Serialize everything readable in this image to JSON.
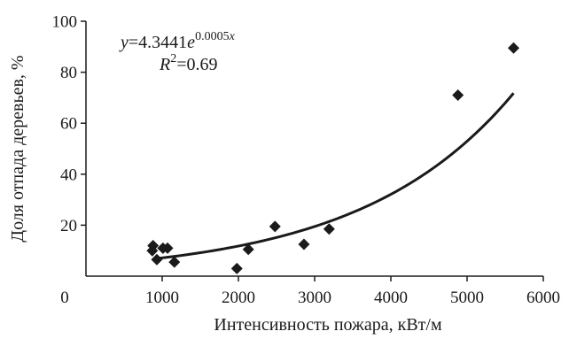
{
  "chart_data": {
    "type": "scatter",
    "xlabel": "Интенсивность пожара, кВт/м",
    "ylabel": "Доля отпада деревьев, %",
    "xlim": [
      0,
      6000
    ],
    "ylim": [
      0,
      100
    ],
    "x_ticks": [
      0,
      1000,
      2000,
      3000,
      4000,
      5000,
      6000
    ],
    "y_ticks": [
      20,
      40,
      60,
      80,
      100
    ],
    "x_tick_labels": [
      "0",
      "1000",
      "2000",
      "3000",
      "4000",
      "5000",
      "6000"
    ],
    "y_tick_labels": [
      "20",
      "40",
      "60",
      "80",
      "100"
    ],
    "grid": false,
    "points": [
      {
        "x": 880,
        "y": 12
      },
      {
        "x": 870,
        "y": 10
      },
      {
        "x": 930,
        "y": 6.5
      },
      {
        "x": 1010,
        "y": 11
      },
      {
        "x": 1070,
        "y": 11
      },
      {
        "x": 1160,
        "y": 5.5
      },
      {
        "x": 1980,
        "y": 3
      },
      {
        "x": 2130,
        "y": 10.5
      },
      {
        "x": 2480,
        "y": 19.5
      },
      {
        "x": 2860,
        "y": 12.5
      },
      {
        "x": 3190,
        "y": 18.5
      },
      {
        "x": 4880,
        "y": 71
      },
      {
        "x": 5610,
        "y": 89.5
      }
    ],
    "trendline": {
      "type": "exponential",
      "a": 4.3441,
      "b": 0.0005,
      "x_range": [
        880,
        5610
      ],
      "equation": {
        "y_var": "y",
        "equals": "=4.3441",
        "e": "e",
        "exponent": "0.0005",
        "exp_var": "x"
      },
      "r_squared": {
        "var": "R",
        "sup": "2",
        "value": "=0.69"
      }
    },
    "marker_color": "#1a1a1a",
    "line_color": "#1a1a1a"
  }
}
